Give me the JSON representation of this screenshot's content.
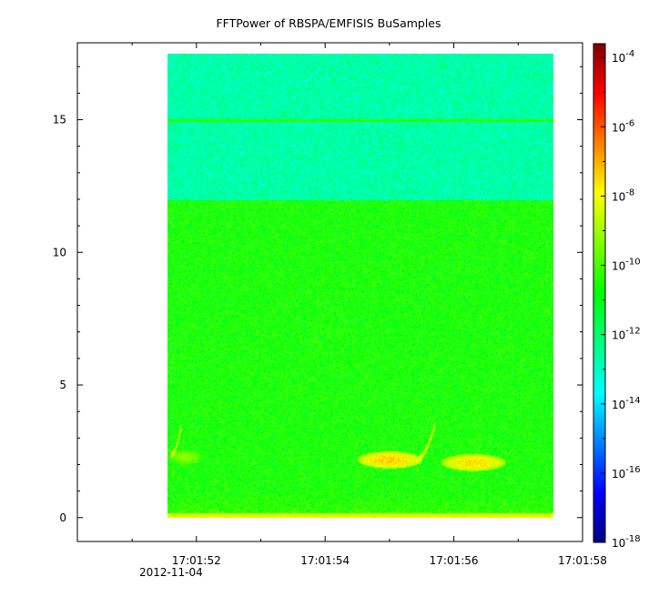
{
  "chart_data": {
    "type": "heatmap",
    "title": "FFTPower of RBSPA/EMFISIS  BuSamples",
    "xlabel": "",
    "ylabel": "",
    "x_ticks": [
      {
        "label": "17:01:52",
        "value": 52
      },
      {
        "label": "17:01:54",
        "value": 54
      },
      {
        "label": "17:01:56",
        "value": 56
      },
      {
        "label": "17:01:58",
        "value": 58
      }
    ],
    "x_date_label": "2012-11-04",
    "x_range": [
      50.15,
      58.0
    ],
    "data_x_range": [
      51.55,
      57.55
    ],
    "y_ticks": [
      0,
      5,
      10,
      15
    ],
    "y_range": [
      -0.9,
      17.9
    ],
    "data_y_range": [
      0,
      17.5
    ],
    "colorbar": {
      "scale": "log",
      "range_exp": [
        -18,
        -3.6
      ],
      "tick_base": "10",
      "tick_exponents": [
        "-4",
        "-6",
        "-8",
        "-10",
        "-12",
        "-14",
        "-16",
        "-18"
      ],
      "colormap": [
        "#00007f",
        "#0000ff",
        "#007fff",
        "#00ffff",
        "#00ff7f",
        "#00ff00",
        "#7fff00",
        "#ffff00",
        "#ff7f00",
        "#ff0000",
        "#7f0000"
      ]
    },
    "features": [
      {
        "name": "band above 12",
        "y_from": 12.0,
        "y_to": 17.5,
        "log10_power": -12.7
      },
      {
        "name": "line at 15",
        "y": 15.0,
        "log10_power": -10.3
      },
      {
        "name": "bulk background",
        "y_from": 0,
        "y_to": 12.0,
        "log10_power": -10.6
      },
      {
        "name": "low-frequency band",
        "y_from": 0,
        "y_to": 0.2,
        "log10_power": -8.3
      },
      {
        "name": "burst 1",
        "x_from": 51.55,
        "x_to": 52.1,
        "y": 2.3,
        "log10_power": -9.2
      },
      {
        "name": "burst 2",
        "x_from": 54.5,
        "x_to": 55.5,
        "y": 2.2,
        "log10_power": -7.4
      },
      {
        "name": "burst 3",
        "x_from": 55.8,
        "x_to": 56.8,
        "y": 2.1,
        "log10_power": -7.6
      },
      {
        "name": "rising tone 1",
        "x_from": 51.6,
        "x_to": 51.75,
        "y_from": 2.4,
        "y_to": 3.4,
        "log10_power": -8.4
      },
      {
        "name": "rising tone 2",
        "x_from": 55.4,
        "x_to": 55.7,
        "y_from": 2.2,
        "y_to": 3.5,
        "log10_power": -8.4
      }
    ]
  }
}
